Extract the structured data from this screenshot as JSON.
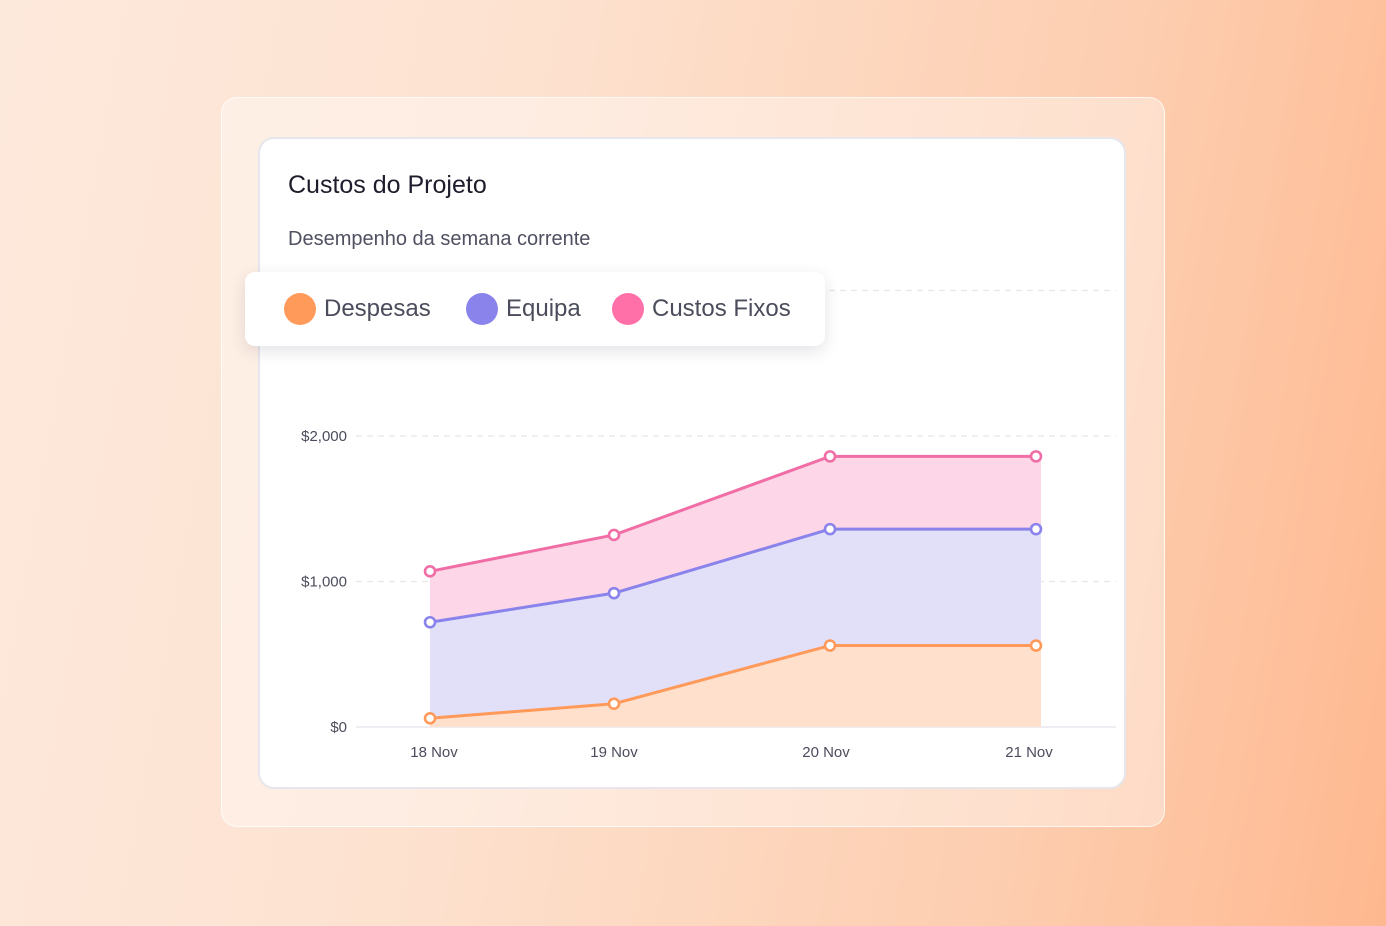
{
  "card": {
    "title": "Custos do Projeto",
    "subtitle": "Desempenho da semana corrente"
  },
  "legend": [
    {
      "label": "Despesas",
      "color": "#ff9a5a"
    },
    {
      "label": "Equipa",
      "color": "#8b83ec"
    },
    {
      "label": "Custos Fixos",
      "color": "#ff6fa8"
    }
  ],
  "chart_data": {
    "type": "area",
    "stacked": true,
    "title": "Custos do Projeto",
    "subtitle": "Desempenho da semana corrente",
    "x": [
      "18 Nov",
      "19 Nov",
      "20 Nov",
      "21 Nov"
    ],
    "y_ticks": [
      0,
      1000,
      2000
    ],
    "y_tick_labels": [
      "$0",
      "$1,000",
      "$2,000"
    ],
    "ylim": [
      0,
      3000
    ],
    "grid": "horizontal dashed",
    "legend_position": "top-left",
    "series": [
      {
        "name": "Despesas",
        "values": [
          60,
          160,
          560,
          560
        ],
        "line_color": "#ff9a5a",
        "fill_color": "#fee0cd"
      },
      {
        "name": "Equipa",
        "values": [
          660,
          760,
          800,
          800
        ],
        "line_color": "#8b83ec",
        "fill_color": "#e1e0f8"
      },
      {
        "name": "Custos Fixos",
        "values": [
          350,
          400,
          500,
          500
        ],
        "line_color": "#f06ea5",
        "fill_color": "#fdd7e7"
      }
    ]
  }
}
